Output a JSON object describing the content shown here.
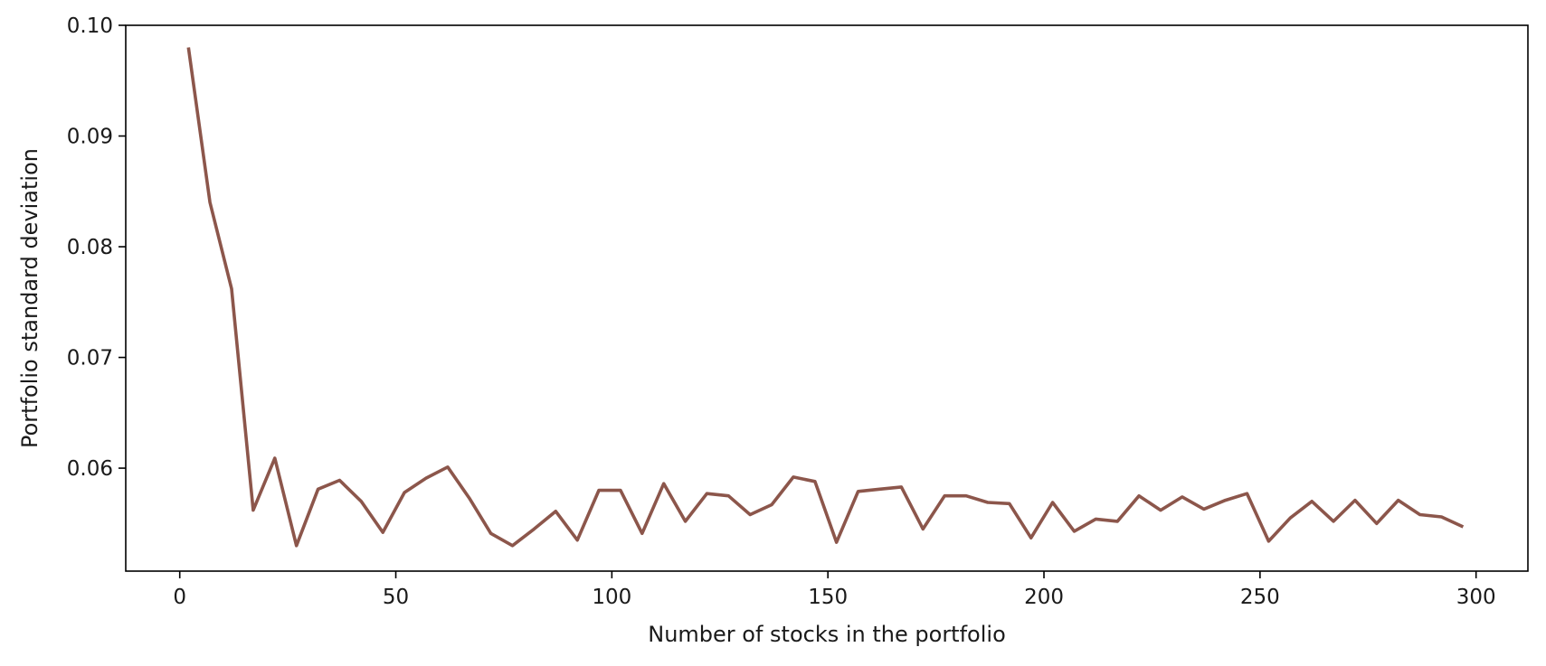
{
  "chart_data": {
    "type": "line",
    "title": "",
    "xlabel": "Number of stocks in the portfolio",
    "ylabel": "Portfolio standard deviation",
    "xlim": [
      -12.5,
      312
    ],
    "ylim": [
      0.0507,
      0.1
    ],
    "xticks": [
      0,
      50,
      100,
      150,
      200,
      250,
      300
    ],
    "xtick_labels": [
      "0",
      "50",
      "100",
      "150",
      "200",
      "250",
      "300"
    ],
    "yticks": [
      0.06,
      0.07,
      0.08,
      0.09,
      0.1
    ],
    "ytick_labels": [
      "0.06",
      "0.07",
      "0.08",
      "0.09",
      "0.10"
    ],
    "grid": false,
    "series": [
      {
        "name": "",
        "color": "#8c564b",
        "x": [
          2,
          7,
          12,
          17,
          22,
          27,
          32,
          37,
          42,
          47,
          52,
          57,
          62,
          67,
          72,
          77,
          82,
          87,
          92,
          97,
          102,
          107,
          112,
          117,
          122,
          127,
          132,
          137,
          142,
          147,
          152,
          157,
          162,
          167,
          172,
          177,
          182,
          187,
          192,
          197,
          202,
          207,
          212,
          217,
          222,
          227,
          232,
          237,
          242,
          247,
          252,
          257,
          262,
          267,
          272,
          277,
          282,
          287,
          292,
          297
        ],
        "y": [
          0.098,
          0.084,
          0.0762,
          0.0562,
          0.0609,
          0.053,
          0.0581,
          0.0589,
          0.057,
          0.0542,
          0.0578,
          0.0591,
          0.0601,
          0.0573,
          0.0541,
          0.053,
          0.0545,
          0.0561,
          0.0535,
          0.058,
          0.058,
          0.0541,
          0.0586,
          0.0552,
          0.0577,
          0.0575,
          0.0558,
          0.0567,
          0.0592,
          0.0588,
          0.0533,
          0.0579,
          0.0581,
          0.0583,
          0.0545,
          0.0575,
          0.0575,
          0.0569,
          0.0568,
          0.0537,
          0.0569,
          0.0543,
          0.0554,
          0.0552,
          0.0575,
          0.0562,
          0.0574,
          0.0563,
          0.0571,
          0.0577,
          0.0534,
          0.0555,
          0.057,
          0.0552,
          0.0571,
          0.055,
          0.0571,
          0.0558,
          0.0556,
          0.0547
        ]
      }
    ]
  }
}
